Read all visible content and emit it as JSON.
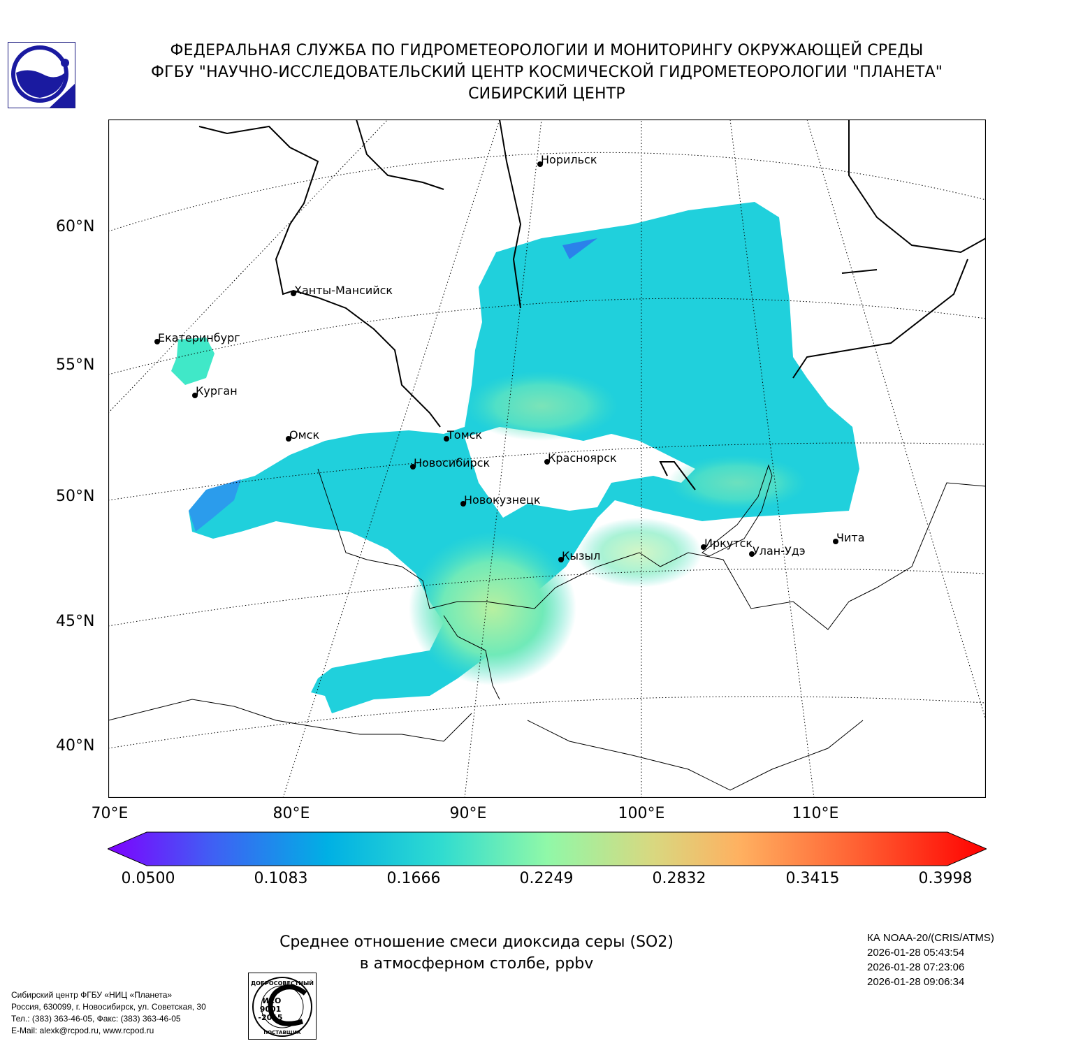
{
  "header": {
    "line1": "ФЕДЕРАЛЬНАЯ СЛУЖБА ПО ГИДРОМЕТЕОРОЛОГИИ И МОНИТОРИНГУ ОКРУЖАЮЩЕЙ СРЕДЫ",
    "line2": "ФГБУ \"НАУЧНО-ИССЛЕДОВАТЕЛЬСКИЙ ЦЕНТР КОСМИЧЕСКОЙ ГИДРОМЕТЕОРОЛОГИИ \"ПЛАНЕТА\"",
    "line3": "СИБИРСКИЙ ЦЕНТР"
  },
  "map": {
    "lat_labels": [
      "60°N",
      "55°N",
      "50°N",
      "45°N",
      "40°N"
    ],
    "lon_labels": [
      "70°E",
      "80°E",
      "90°E",
      "100°E",
      "110°E"
    ],
    "cities": [
      {
        "name": "Норильск"
      },
      {
        "name": "Ханты-Мансийск"
      },
      {
        "name": "Екатеринбург"
      },
      {
        "name": "Курган"
      },
      {
        "name": "Омск"
      },
      {
        "name": "Томск"
      },
      {
        "name": "Новосибирск"
      },
      {
        "name": "Красноярск"
      },
      {
        "name": "Новокузнецк"
      },
      {
        "name": "Иркутск"
      },
      {
        "name": "Улан-Удэ"
      },
      {
        "name": "Чита"
      },
      {
        "name": "Кызыл"
      }
    ]
  },
  "colorbar": {
    "ticks": [
      "0.0500",
      "0.1083",
      "0.1666",
      "0.2249",
      "0.2832",
      "0.3415",
      "0.3998"
    ],
    "colors": [
      "#7f00ff",
      "#3f60f4",
      "#00b4e0",
      "#40e8c8",
      "#a0f8a0",
      "#d6d680",
      "#ffb060",
      "#ff6030",
      "#ff0000"
    ]
  },
  "title": {
    "line1": "Среднее отношение смеси диоксида серы (SO2)",
    "line2": "в атмосферном столбе, ppbv"
  },
  "satellite": {
    "name": "КА NOAA-20/(CRIS/ATMS)",
    "times": [
      "2026-01-28 05:43:54",
      "2026-01-28 07:23:06",
      "2026-01-28 09:06:34"
    ]
  },
  "contacts": {
    "line1": "Сибирский центр ФГБУ «НИЦ «Планета»",
    "line2": "Россия, 630099, г. Новосибирск, ул. Советская, 30",
    "line3": "Тел.: (383) 363-46-05, Факс: (383) 363-46-05",
    "line4": "E-Mail: alexk@rcpod.ru, www.rcpod.ru"
  },
  "iso_badge": {
    "top": "ДОБРОСОВЕСТНЫЙ",
    "mid1": "ИСО",
    "mid2": "9001",
    "mid3": "-2015",
    "bottom": "ПОСТАВЩИК"
  }
}
